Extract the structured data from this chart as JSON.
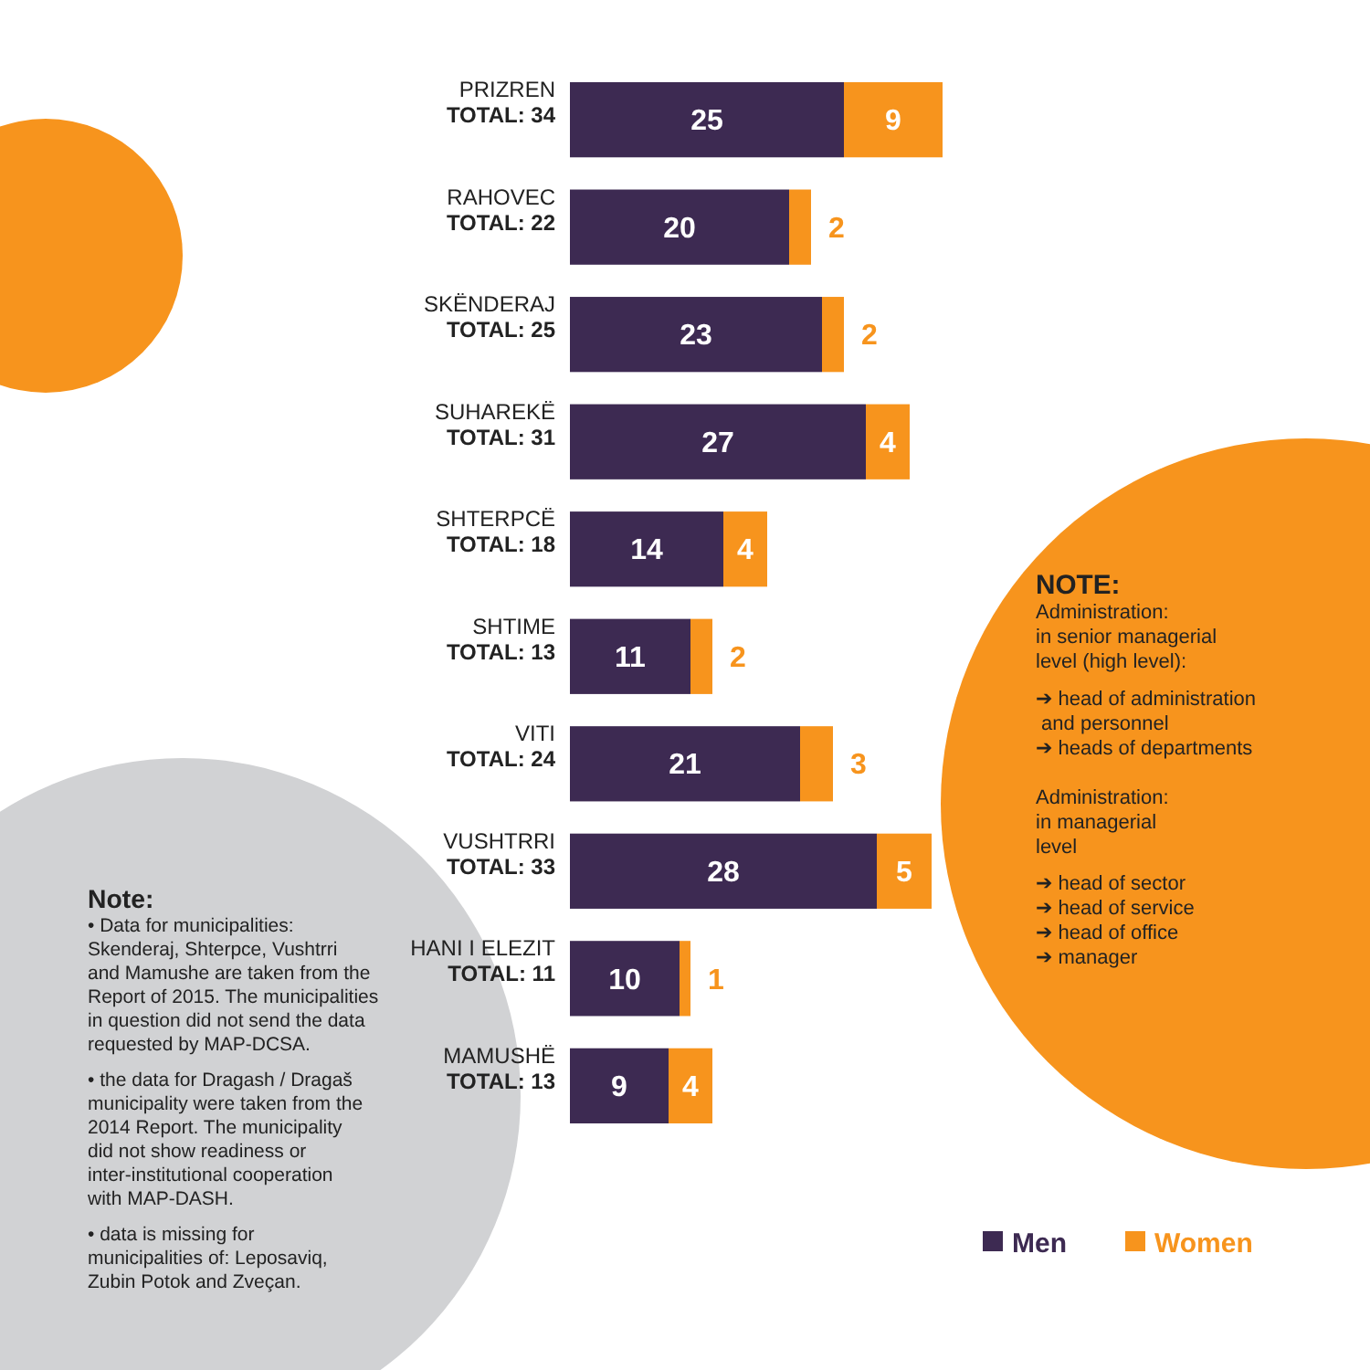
{
  "chart_data": {
    "type": "bar",
    "orientation": "horizontal",
    "stacked": true,
    "data_labels": true,
    "legend": "bottom right",
    "categories": [
      "PRIZREN",
      "RAHOVEC",
      "SKËNDERAJ",
      "SUHAREKË",
      "SHTERPCË",
      "SHTIME",
      "VITI",
      "VUSHTRRI",
      "HANI I ELEZIT",
      "MAMUSHË"
    ],
    "totals": [
      "TOTAL: 34",
      "TOTAL: 22",
      "TOTAL: 25",
      "TOTAL: 31",
      "TOTAL: 18",
      "TOTAL: 13",
      "TOTAL: 24",
      "TOTAL: 33",
      "TOTAL: 11",
      "TOTAL: 13"
    ],
    "series": [
      {
        "name": "Men",
        "color": "#3d2a52",
        "values": [
          25,
          20,
          23,
          27,
          14,
          11,
          21,
          28,
          10,
          9
        ]
      },
      {
        "name": "Women",
        "color": "#f7941d",
        "values": [
          9,
          2,
          2,
          4,
          4,
          2,
          3,
          5,
          1,
          4
        ]
      }
    ],
    "annotations": [
      "Note:\n• Data for municipalities:\nSkenderaj, Shterpce, Vushtrri\nand Mamushe are taken from the\nReport of 2015. The municipalities\nin question did not send the data\nrequested by MAP-DCSA.\n\n• the data for Dragash / Dragaš\nmunicipality were taken from the\n2014 Report. The municipality\ndid not show readiness or\ninter-institutional cooperation\nwith MAP-DASH.\n\n• data is missing for\nmunicipalities of: Leposaviq,\nZubin Potok and Zveçan.",
      "NOTE:\nAdministration:\nin senior managerial\nlevel (high level):\n\n➔ head of administration\n    and personnel\n➔ heads of departments\n\n\nAdministration:\nin managerial\nlevel\n\n➔ head of sector\n➔ head of service\n➔ head of office\n➔ manager"
    ]
  }
}
